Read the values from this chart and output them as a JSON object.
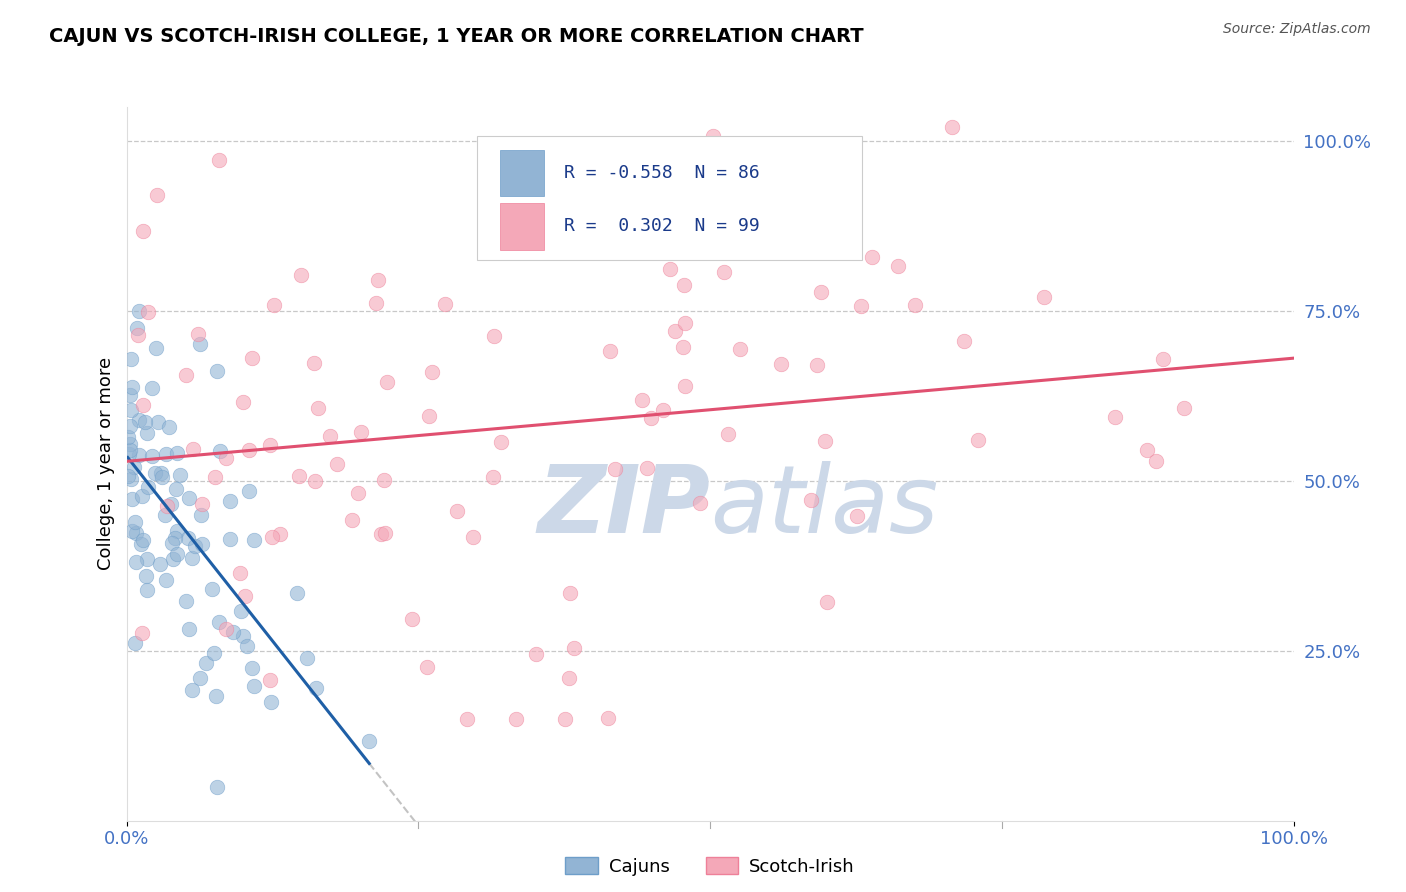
{
  "title": "CAJUN VS SCOTCH-IRISH COLLEGE, 1 YEAR OR MORE CORRELATION CHART",
  "source_text": "Source: ZipAtlas.com",
  "ylabel": "College, 1 year or more",
  "xlim": [
    0.0,
    1.0
  ],
  "ylim": [
    0.0,
    1.05
  ],
  "cajun_color": "#92b4d4",
  "cajun_color_edge": "#6e9ec9",
  "scotch_color": "#f4a8b8",
  "scotch_color_edge": "#ee8099",
  "cajun_line_color": "#1f5fa6",
  "scotch_line_color": "#e05070",
  "watermark_zip": "ZIP",
  "watermark_atlas": "atlas",
  "watermark_color": "#ccd8e8",
  "R_cajun": -0.558,
  "N_cajun": 86,
  "R_scotch": 0.302,
  "N_scotch": 99,
  "grid_color": "#c8c8c8",
  "tick_color": "#4472c4",
  "background_color": "#ffffff",
  "legend_entry1": "R = -0.558  N = 86",
  "legend_entry2": "R =  0.302  N = 99",
  "bottom_label1": "Cajuns",
  "bottom_label2": "Scotch-Irish",
  "title_fontsize": 14,
  "axis_fontsize": 13,
  "source_fontsize": 10
}
